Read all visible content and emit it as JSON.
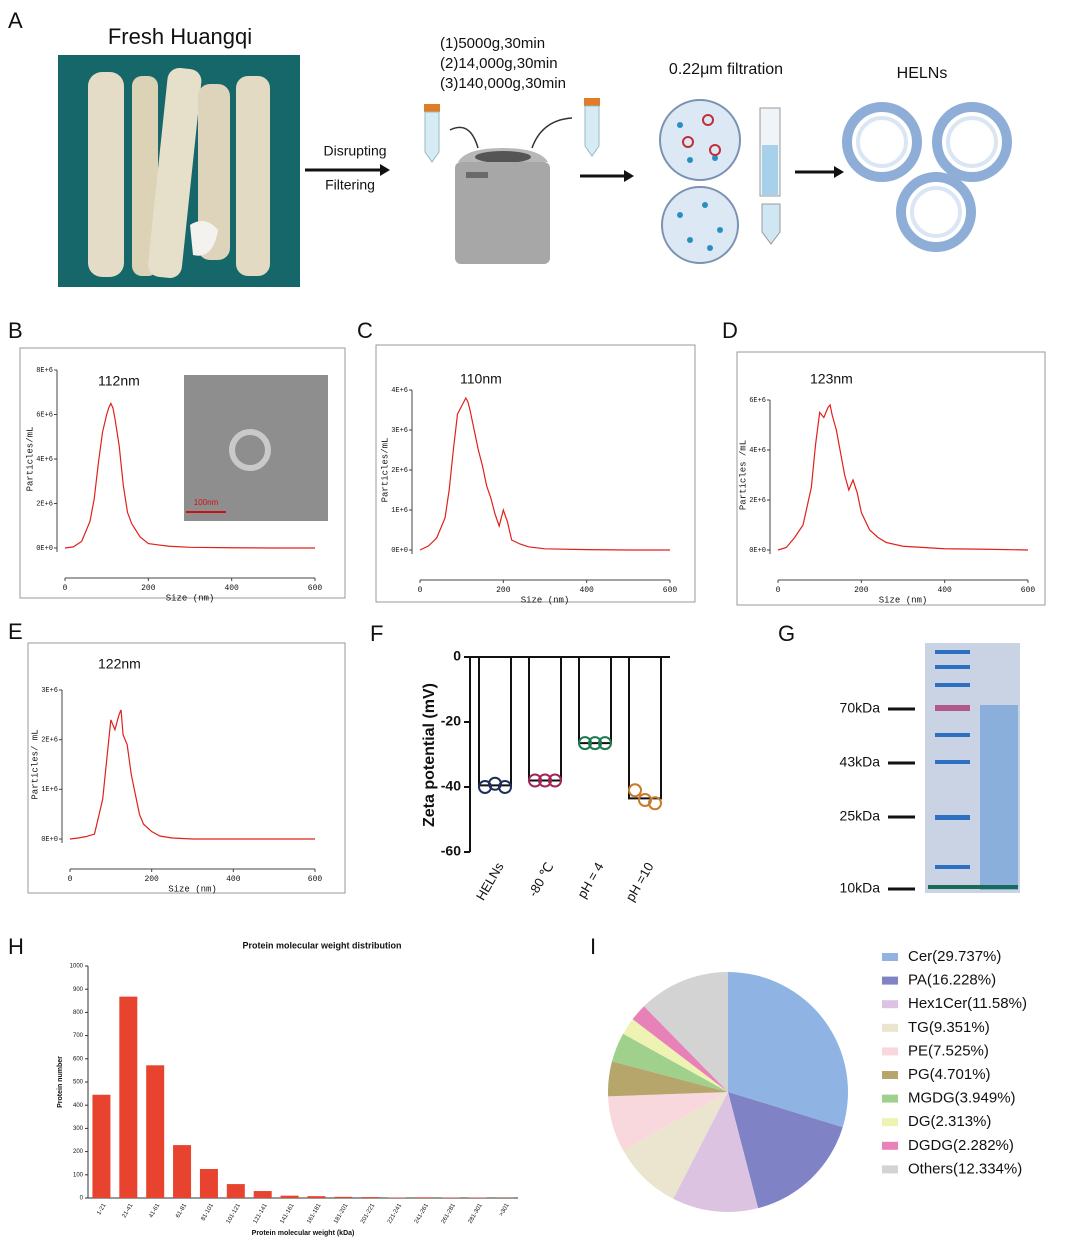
{
  "diagram": {
    "label": "A",
    "photo_title": "Fresh Huangqi",
    "step1": "Disrupting",
    "step2": "Filtering",
    "spins": [
      "(1)5000g,30min",
      "(2)14,000g,30min",
      "(3)140,000g,30min"
    ],
    "filtration": "0.22μm filtration",
    "product": "HELNs"
  },
  "gel": {
    "label": "G",
    "markers": [
      "70kDa",
      "43kDa",
      "25kDa",
      "10kDa"
    ]
  },
  "chart_data": [
    {
      "type": "line",
      "label": "B",
      "annotation": "112nm",
      "inset_scale": "100nm",
      "xlabel": "Size (nm)",
      "ylabel": "Particles/mL",
      "color": "#e0201c",
      "x": [
        0,
        20,
        40,
        60,
        70,
        80,
        90,
        100,
        105,
        110,
        115,
        120,
        130,
        140,
        150,
        160,
        170,
        180,
        200,
        220,
        250,
        300,
        400,
        500,
        600
      ],
      "values": [
        0,
        50000,
        300000,
        1200000,
        2200000,
        3800000,
        5200000,
        6000000,
        6300000,
        6500000,
        6300000,
        5800000,
        4600000,
        2800000,
        1600000,
        1100000,
        800000,
        500000,
        200000,
        150000,
        80000,
        30000,
        10000,
        0,
        0
      ],
      "xlim": [
        0,
        600
      ],
      "xticks": [
        0,
        200,
        400,
        600
      ],
      "ylim": [
        0,
        8000000
      ],
      "yticks": [
        {
          "value": 0,
          "label": "0E+0"
        },
        {
          "value": 2000000,
          "label": "2E+6"
        },
        {
          "value": 4000000,
          "label": "4E+6"
        },
        {
          "value": 6000000,
          "label": "6E+6"
        },
        {
          "value": 8000000,
          "label": "8E+6"
        }
      ]
    },
    {
      "type": "line",
      "label": "C",
      "annotation": "110nm",
      "xlabel": "Size (nm)",
      "ylabel": "Particles/mL",
      "color": "#e0201c",
      "x": [
        0,
        20,
        40,
        60,
        70,
        80,
        90,
        100,
        110,
        115,
        120,
        130,
        140,
        150,
        160,
        170,
        180,
        190,
        200,
        210,
        220,
        240,
        260,
        300,
        400,
        500,
        600
      ],
      "values": [
        0,
        100000,
        300000,
        800000,
        1500000,
        2500000,
        3400000,
        3600000,
        3800000,
        3700000,
        3500000,
        3000000,
        2500000,
        2100000,
        1600000,
        1300000,
        900000,
        600000,
        1000000,
        700000,
        250000,
        150000,
        80000,
        30000,
        10000,
        0,
        0
      ],
      "xlim": [
        0,
        600
      ],
      "xticks": [
        0,
        200,
        400,
        600
      ],
      "ylim": [
        0,
        4000000
      ],
      "yticks": [
        {
          "value": 0,
          "label": "0E+0"
        },
        {
          "value": 1000000,
          "label": "1E+6"
        },
        {
          "value": 2000000,
          "label": "2E+6"
        },
        {
          "value": 3000000,
          "label": "3E+6"
        },
        {
          "value": 4000000,
          "label": "4E+6"
        }
      ]
    },
    {
      "type": "line",
      "label": "D",
      "annotation": "123nm",
      "xlabel": "Size (nm)",
      "ylabel": "Particles /mL",
      "color": "#e0201c",
      "x": [
        0,
        20,
        40,
        60,
        80,
        90,
        100,
        110,
        120,
        125,
        130,
        140,
        150,
        160,
        170,
        180,
        190,
        200,
        220,
        240,
        260,
        300,
        400,
        500,
        600
      ],
      "values": [
        0,
        100000,
        500000,
        1000000,
        2500000,
        4200000,
        5500000,
        5300000,
        5700000,
        5800000,
        5400000,
        4800000,
        3900000,
        3000000,
        2400000,
        2800000,
        2300000,
        1500000,
        800000,
        500000,
        300000,
        150000,
        50000,
        30000,
        0
      ],
      "xlim": [
        0,
        600
      ],
      "xticks": [
        0,
        200,
        400,
        600
      ],
      "ylim": [
        0,
        6000000
      ],
      "yticks": [
        {
          "value": 0,
          "label": "0E+0"
        },
        {
          "value": 2000000,
          "label": "2E+6"
        },
        {
          "value": 4000000,
          "label": "4E+6"
        },
        {
          "value": 6000000,
          "label": "6E+6"
        }
      ]
    },
    {
      "type": "line",
      "label": "E",
      "annotation": "122nm",
      "xlabel": "Size (nm)",
      "ylabel": "Particles/ mL",
      "color": "#e0201c",
      "x": [
        0,
        20,
        40,
        60,
        80,
        90,
        100,
        110,
        120,
        125,
        130,
        140,
        150,
        160,
        170,
        180,
        200,
        220,
        250,
        300,
        400,
        500,
        600
      ],
      "values": [
        0,
        20000,
        50000,
        100000,
        800000,
        1600000,
        2400000,
        2200000,
        2500000,
        2600000,
        2100000,
        1900000,
        1300000,
        900000,
        500000,
        300000,
        150000,
        60000,
        20000,
        0,
        0,
        0,
        0
      ],
      "xlim": [
        0,
        600
      ],
      "xticks": [
        0,
        200,
        400,
        600
      ],
      "ylim": [
        0,
        3000000
      ],
      "yticks": [
        {
          "value": 0,
          "label": "0E+0"
        },
        {
          "value": 1000000,
          "label": "1E+6"
        },
        {
          "value": 2000000,
          "label": "2E+6"
        },
        {
          "value": 3000000,
          "label": "3E+6"
        }
      ]
    },
    {
      "type": "dotbar",
      "label": "F",
      "ylabel": "Zeta potential (mV)",
      "categories": [
        "HELNs",
        "-80 ℃",
        "pH = 4",
        "pH =10"
      ],
      "values": [
        -39.5,
        -38,
        -26.5,
        -43.5
      ],
      "points": [
        [
          -40,
          -39,
          -40
        ],
        [
          -38,
          -38,
          -38
        ],
        [
          -26.5,
          -26.5,
          -26.5
        ],
        [
          -41,
          -44,
          -45
        ]
      ],
      "colors": [
        "#1f2d5c",
        "#a3245a",
        "#1b7a4f",
        "#c87a2a"
      ],
      "ylim": [
        -60,
        0
      ],
      "yticks": [
        -60,
        -40,
        -20,
        0
      ]
    },
    {
      "type": "bar",
      "label": "H",
      "title": "Protein molecular weight distribution",
      "xlabel": "Protein molecular weight (kDa)",
      "ylabel": "Protein number",
      "color": "#e8432e",
      "categories": [
        "1-21",
        "21-41",
        "41-61",
        "61-81",
        "81-101",
        "101-121",
        "121-141",
        "141-161",
        "161-181",
        "181-201",
        "201-221",
        "221-241",
        "241-261",
        "261-281",
        "281-301",
        ">301"
      ],
      "values": [
        445,
        868,
        572,
        228,
        125,
        60,
        30,
        10,
        8,
        5,
        4,
        2,
        3,
        2,
        2,
        1
      ],
      "ylim": [
        0,
        1000
      ],
      "yticks": [
        0,
        100,
        200,
        300,
        400,
        500,
        600,
        700,
        800,
        900,
        1000
      ]
    },
    {
      "type": "pie",
      "label": "I",
      "categories": [
        "Cer(29.737%)",
        "PA(16.228%)",
        "Hex1Cer(11.58%)",
        "TG(9.351%)",
        "PE(7.525%)",
        "PG(4.701%)",
        "MGDG(3.949%)",
        "DG(2.313%)",
        "DGDG(2.282%)",
        "Others(12.334%)"
      ],
      "values": [
        29.737,
        16.228,
        11.58,
        9.351,
        7.525,
        4.701,
        3.949,
        2.313,
        2.282,
        12.334
      ],
      "colors": [
        "#8fb4e3",
        "#7f82c4",
        "#dcc3e2",
        "#ebe5cf",
        "#f9d8dd",
        "#b7a66b",
        "#9fd18c",
        "#eef2b3",
        "#e881b8",
        "#d3d3d3"
      ]
    }
  ]
}
